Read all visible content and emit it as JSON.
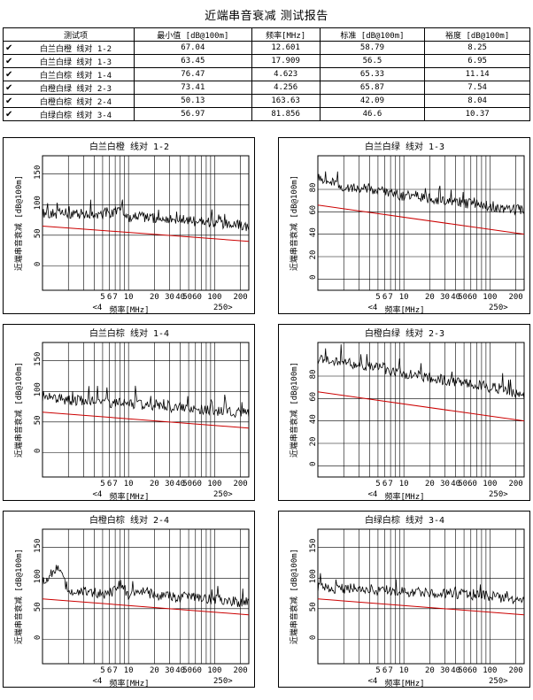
{
  "report": {
    "title": "近端串音衰减 测试报告"
  },
  "table": {
    "headers": [
      "测试项",
      "最小值 [dB@100m]",
      "频率[MHz]",
      "标准 [dB@100m]",
      "裕度 [dB@100m]"
    ],
    "rows": [
      {
        "check": "✔",
        "name": "白兰白橙 线对 1-2",
        "min": "67.04",
        "freq": "12.601",
        "std": "58.79",
        "margin": "8.25"
      },
      {
        "check": "✔",
        "name": "白兰白绿 线对 1-3",
        "min": "63.45",
        "freq": "17.909",
        "std": "56.5",
        "margin": "6.95"
      },
      {
        "check": "✔",
        "name": "白兰白棕 线对 1-4",
        "min": "76.47",
        "freq": "4.623",
        "std": "65.33",
        "margin": "11.14"
      },
      {
        "check": "✔",
        "name": "白橙白绿 线对 2-3",
        "min": "73.41",
        "freq": "4.256",
        "std": "65.87",
        "margin": "7.54"
      },
      {
        "check": "✔",
        "name": "白橙白棕 线对 2-4",
        "min": "50.13",
        "freq": "163.63",
        "std": "42.09",
        "margin": "8.04"
      },
      {
        "check": "✔",
        "name": "白绿白棕 线对 3-4",
        "min": "56.97",
        "freq": "81.856",
        "std": "46.6",
        "margin": "10.37"
      }
    ]
  },
  "chart_data": [
    {
      "type": "line",
      "title": "白兰白橙 线对 1-2",
      "xlabel": "频率[MHz]",
      "ylabel": "近端串音衰减 [dB@100m]",
      "x_scale": "log",
      "xlim": [
        1,
        250
      ],
      "ylim": [
        -40,
        180
      ],
      "y_ticks": [
        "0",
        "50",
        "100",
        "150"
      ],
      "x_ticks": [
        "5",
        "6",
        "7",
        "10",
        "20",
        "30",
        "40",
        "5060",
        "100",
        "200"
      ],
      "x_extra_labels": [
        "<4",
        "250>"
      ],
      "series": [
        {
          "name": "测量",
          "x": [
            1,
            2,
            4,
            6,
            8,
            10,
            15,
            20,
            30,
            50,
            80,
            100,
            150,
            200,
            250
          ],
          "y": [
            84,
            86,
            85,
            82,
            95,
            80,
            80,
            78,
            76,
            74,
            72,
            70,
            68,
            66,
            62
          ]
        },
        {
          "name": "标准",
          "x": [
            1,
            250
          ],
          "y": [
            65,
            40
          ]
        }
      ]
    },
    {
      "type": "line",
      "title": "白兰白绿 线对 1-3",
      "xlabel": "频率[MHz]",
      "ylabel": "近端串音衰减 [dB@100m]",
      "x_scale": "log",
      "xlim": [
        1,
        250
      ],
      "ylim": [
        -10,
        110
      ],
      "y_ticks": [
        "0",
        "20",
        "40",
        "60",
        "80"
      ],
      "x_ticks": [
        "5",
        "6",
        "7",
        "10",
        "20",
        "30",
        "40",
        "5060",
        "100",
        "200"
      ],
      "x_extra_labels": [
        "<4",
        "250>"
      ],
      "series": [
        {
          "name": "测量",
          "x": [
            1,
            2,
            4,
            6,
            8,
            10,
            15,
            20,
            30,
            50,
            80,
            100,
            150,
            200,
            250
          ],
          "y": [
            92,
            82,
            80,
            78,
            76,
            74,
            74,
            72,
            70,
            68,
            66,
            65,
            63,
            62,
            61
          ]
        },
        {
          "name": "标准",
          "x": [
            1,
            250
          ],
          "y": [
            66,
            40
          ]
        }
      ]
    },
    {
      "type": "line",
      "title": "白兰白棕 线对 1-4",
      "xlabel": "频率[MHz]",
      "ylabel": "近端串音衰减 [dB@100m]",
      "x_scale": "log",
      "xlim": [
        1,
        250
      ],
      "ylim": [
        -40,
        180
      ],
      "y_ticks": [
        "0",
        "50",
        "100",
        "150"
      ],
      "x_ticks": [
        "5",
        "6",
        "7",
        "10",
        "20",
        "30",
        "40",
        "5060",
        "100",
        "200"
      ],
      "x_extra_labels": [
        "<4",
        "250>"
      ],
      "series": [
        {
          "name": "测量",
          "x": [
            1,
            2,
            4,
            6,
            8,
            10,
            15,
            20,
            30,
            50,
            80,
            100,
            150,
            200,
            250
          ],
          "y": [
            90,
            86,
            84,
            82,
            80,
            79,
            78,
            76,
            74,
            72,
            70,
            68,
            66,
            64,
            63
          ]
        },
        {
          "name": "标准",
          "x": [
            1,
            250
          ],
          "y": [
            66,
            40
          ]
        }
      ]
    },
    {
      "type": "line",
      "title": "白橙白绿 线对 2-3",
      "xlabel": "频率[MHz]",
      "ylabel": "近端串音衰减 [dB@100m]",
      "x_scale": "log",
      "xlim": [
        1,
        250
      ],
      "ylim": [
        -10,
        110
      ],
      "y_ticks": [
        "0",
        "20",
        "40",
        "60",
        "80"
      ],
      "x_ticks": [
        "5",
        "6",
        "7",
        "10",
        "20",
        "30",
        "40",
        "5060",
        "100",
        "200"
      ],
      "x_extra_labels": [
        "<4",
        "250>"
      ],
      "series": [
        {
          "name": "测量",
          "x": [
            1,
            2,
            4,
            6,
            8,
            10,
            15,
            20,
            30,
            50,
            80,
            100,
            150,
            200,
            250
          ],
          "y": [
            95,
            92,
            88,
            86,
            84,
            82,
            80,
            79,
            76,
            74,
            72,
            70,
            68,
            65,
            63
          ]
        },
        {
          "name": "标准",
          "x": [
            1,
            250
          ],
          "y": [
            66,
            40
          ]
        }
      ]
    },
    {
      "type": "line",
      "title": "白橙白棕 线对 2-4",
      "xlabel": "频率[MHz]",
      "ylabel": "近端串音衰减 [dB@100m]",
      "x_scale": "log",
      "xlim": [
        1,
        250
      ],
      "ylim": [
        -40,
        180
      ],
      "y_ticks": [
        "0",
        "50",
        "100",
        "150"
      ],
      "x_ticks": [
        "5",
        "6",
        "7",
        "10",
        "20",
        "30",
        "40",
        "5060",
        "100",
        "200"
      ],
      "x_extra_labels": [
        "<4",
        "250>"
      ],
      "series": [
        {
          "name": "测量",
          "x": [
            1,
            1.5,
            2,
            4,
            6,
            8,
            10,
            15,
            20,
            30,
            50,
            80,
            100,
            150,
            200,
            250
          ],
          "y": [
            95,
            115,
            80,
            76,
            74,
            90,
            72,
            80,
            72,
            70,
            68,
            66,
            64,
            62,
            60,
            58
          ]
        },
        {
          "name": "标准",
          "x": [
            1,
            250
          ],
          "y": [
            66,
            40
          ]
        }
      ]
    },
    {
      "type": "line",
      "title": "白绿白棕 线对 3-4",
      "xlabel": "频率[MHz]",
      "ylabel": "近端串音衰减 [dB@100m]",
      "x_scale": "log",
      "xlim": [
        1,
        250
      ],
      "ylim": [
        -40,
        180
      ],
      "y_ticks": [
        "0",
        "50",
        "100",
        "150"
      ],
      "x_ticks": [
        "5",
        "6",
        "7",
        "10",
        "20",
        "30",
        "40",
        "5060",
        "100",
        "200"
      ],
      "x_extra_labels": [
        "<4",
        "250>"
      ],
      "series": [
        {
          "name": "测量",
          "x": [
            1,
            2,
            4,
            6,
            8,
            10,
            15,
            20,
            30,
            50,
            80,
            100,
            150,
            200,
            250
          ],
          "y": [
            85,
            83,
            82,
            80,
            80,
            78,
            78,
            76,
            75,
            73,
            72,
            70,
            68,
            66,
            64
          ]
        },
        {
          "name": "标准",
          "x": [
            1,
            250
          ],
          "y": [
            66,
            40
          ]
        }
      ]
    }
  ],
  "colors": {
    "limit_line": "#cc0000",
    "trace": "#000000",
    "grid": "#000000"
  }
}
